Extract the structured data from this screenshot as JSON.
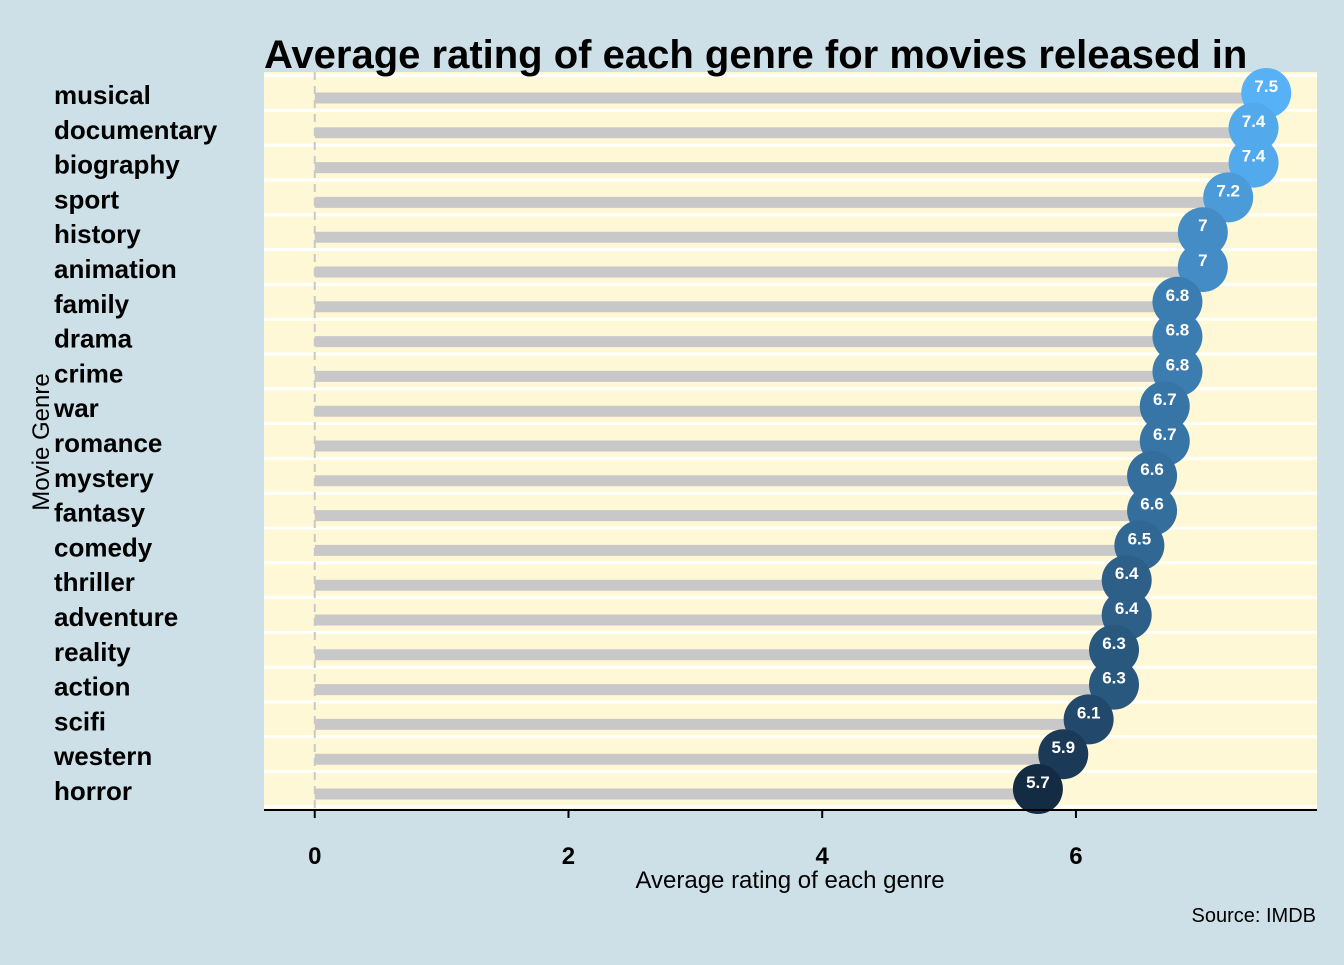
{
  "chart_data": {
    "type": "lollipop",
    "title": "Average rating of each genre for movies released in",
    "xlabel": "Average rating of each genre",
    "ylabel": "Movie Genre",
    "caption": "Source: IMDB",
    "xlim": [
      -0.4,
      7.9
    ],
    "x_ticks": [
      0,
      2,
      4,
      6
    ],
    "x_tick_labels": [
      "0",
      "2",
      "4",
      "6"
    ],
    "grid": true,
    "legend": "none",
    "categories": [
      "musical",
      "documentary",
      "biography",
      "sport",
      "history",
      "animation",
      "family",
      "drama",
      "crime",
      "war",
      "romance",
      "mystery",
      "fantasy",
      "comedy",
      "thriller",
      "adventure",
      "reality",
      "action",
      "scifi",
      "western",
      "horror"
    ],
    "values": [
      7.5,
      7.4,
      7.4,
      7.2,
      7,
      7,
      6.8,
      6.8,
      6.8,
      6.7,
      6.7,
      6.6,
      6.6,
      6.5,
      6.4,
      6.4,
      6.3,
      6.3,
      6.1,
      5.9,
      5.7
    ],
    "value_labels": [
      "7.5",
      "7.4",
      "7.4",
      "7.2",
      "7",
      "7",
      "6.8",
      "6.8",
      "6.8",
      "6.7",
      "6.7",
      "6.6",
      "6.6",
      "6.5",
      "6.4",
      "6.4",
      "6.3",
      "6.3",
      "6.1",
      "5.9",
      "5.7"
    ],
    "colors": {
      "page_background": "#cde0e8",
      "panel_background": "#fff8d6",
      "gridline": "#ffffff",
      "stem": "#c8c8c8",
      "zero_line": "#c8c8c8",
      "axis_line": "#000000",
      "point_low": "#132b43",
      "point_high": "#56b1f7",
      "point_label": "#ffffff"
    }
  }
}
